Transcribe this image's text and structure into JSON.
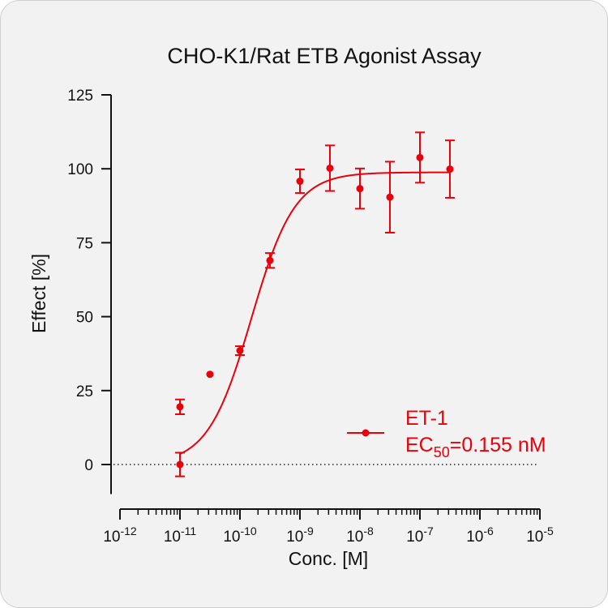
{
  "chart_data": {
    "type": "scatter",
    "title": "CHO-K1/Rat ETB Agonist Assay",
    "xlabel": "Conc. [M]",
    "ylabel": "Effect  [%]",
    "x_scale": "log",
    "xlim": [
      1e-12,
      1e-05
    ],
    "ylim": [
      -10,
      125
    ],
    "y_ticks": [
      0,
      25,
      50,
      75,
      100,
      125
    ],
    "x_ticks": [
      {
        "base": "10",
        "exp": "-12"
      },
      {
        "base": "10",
        "exp": "-11"
      },
      {
        "base": "10",
        "exp": "-10"
      },
      {
        "base": "10",
        "exp": "-9"
      },
      {
        "base": "10",
        "exp": "-8"
      },
      {
        "base": "10",
        "exp": "-7"
      },
      {
        "base": "10",
        "exp": "-6"
      },
      {
        "base": "10",
        "exp": "-5"
      }
    ],
    "reference_line": {
      "y": 0,
      "style": "dotted"
    },
    "legend_position": "bottom-right",
    "series": [
      {
        "name": "ET-1",
        "ec50_label": {
          "prefix": "EC",
          "sub": "50",
          "suffix": "=0.155 nM"
        },
        "color": "#e8000b",
        "points": [
          {
            "x": 1e-11,
            "y": 19.5,
            "err": 2.5
          },
          {
            "x": 1e-11,
            "y": 0,
            "err": 4
          },
          {
            "x": 3.16e-11,
            "y": 30.5,
            "err": 0
          },
          {
            "x": 1e-10,
            "y": 38.5,
            "err": 1.5
          },
          {
            "x": 3.16e-10,
            "y": 69,
            "err": 2.5
          },
          {
            "x": 1e-09,
            "y": 95.8,
            "err": 4
          },
          {
            "x": 3.16e-09,
            "y": 100.2,
            "err": 7.7
          },
          {
            "x": 1e-08,
            "y": 93.3,
            "err": 6.8
          },
          {
            "x": 3.16e-08,
            "y": 90.4,
            "err": 12
          },
          {
            "x": 1e-07,
            "y": 103.8,
            "err": 8.5
          },
          {
            "x": 3.16e-07,
            "y": 99.9,
            "err": 9.7
          }
        ],
        "fit": {
          "bottom": 0,
          "top": 98.8,
          "ec50": 1.55e-10,
          "hill": 1.2,
          "x_range": [
            1e-11,
            3.16e-07
          ]
        }
      }
    ]
  }
}
